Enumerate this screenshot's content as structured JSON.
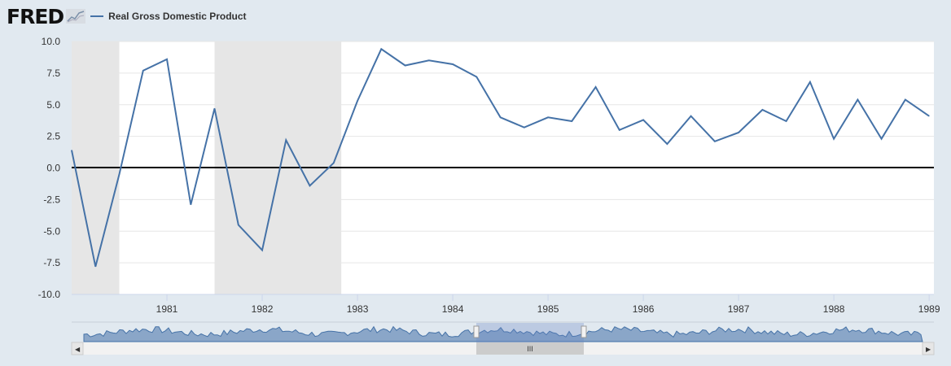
{
  "header": {
    "logo": "FRED",
    "legend_label": "Real Gross Domestic Product"
  },
  "colors": {
    "line": "#4572a7",
    "recession": "#e6e6e6",
    "plot_bg": "#ffffff",
    "page_bg": "#e1e9f0"
  },
  "chart_data": {
    "type": "line",
    "title": "",
    "xlabel": "",
    "ylabel": "",
    "ylim": [
      -10,
      10
    ],
    "y_ticks": [
      "10.0",
      "7.5",
      "5.0",
      "2.5",
      "0.0",
      "-2.5",
      "-5.0",
      "-7.5",
      "-10.0"
    ],
    "x_ticks": [
      "1981",
      "1982",
      "1983",
      "1984",
      "1985",
      "1986",
      "1987",
      "1988",
      "1989"
    ],
    "xlim": [
      1980.0,
      1989.05
    ],
    "grid": true,
    "legend_position": "top-left",
    "recessions": [
      [
        1980.0,
        1980.5
      ],
      [
        1981.5,
        1982.83
      ]
    ],
    "series": [
      {
        "name": "Real Gross Domestic Product",
        "x": [
          1980.0,
          1980.25,
          1980.5,
          1980.75,
          1981.0,
          1981.25,
          1981.5,
          1981.75,
          1982.0,
          1982.25,
          1982.5,
          1982.75,
          1983.0,
          1983.25,
          1983.5,
          1983.75,
          1984.0,
          1984.25,
          1984.5,
          1984.75,
          1985.0,
          1985.25,
          1985.5,
          1985.75,
          1986.0,
          1986.25,
          1986.5,
          1986.75,
          1987.0,
          1987.25,
          1987.5,
          1987.75,
          1988.0,
          1988.25,
          1988.5,
          1988.75,
          1989.0
        ],
        "values": [
          1.4,
          -7.8,
          -0.5,
          7.7,
          8.6,
          -2.9,
          4.7,
          -4.5,
          -6.5,
          2.2,
          -1.4,
          0.4,
          5.3,
          9.4,
          8.1,
          8.5,
          8.2,
          7.2,
          4.0,
          3.2,
          4.0,
          3.7,
          6.4,
          3.0,
          3.8,
          1.9,
          4.1,
          2.1,
          2.8,
          4.6,
          3.7,
          6.8,
          2.3,
          5.4,
          2.3,
          5.4,
          4.1
        ]
      }
    ]
  },
  "navigator": {
    "scroll_handle": "III"
  }
}
